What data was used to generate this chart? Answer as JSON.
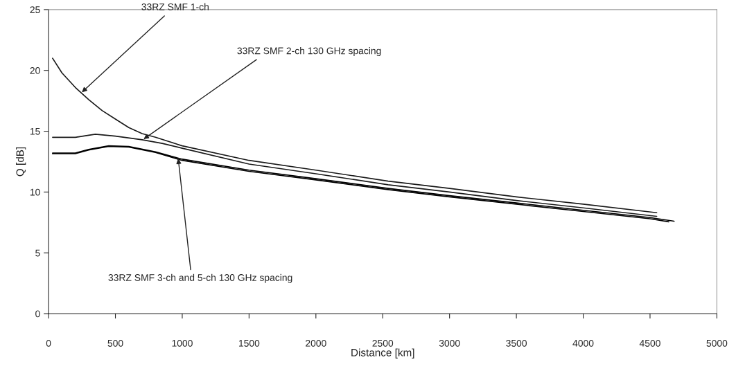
{
  "chart_data": {
    "type": "line",
    "xlabel": "Distance [km]",
    "ylabel": "Q [dB]",
    "xlim": [
      0,
      5000
    ],
    "xticks": [
      0,
      500,
      1000,
      1500,
      2000,
      2500,
      3000,
      3500,
      4000,
      4500,
      5000
    ],
    "ylim": [
      0,
      25
    ],
    "yticks": [
      0,
      5,
      10,
      15,
      20,
      25
    ],
    "grid": false,
    "legend": false,
    "series": [
      {
        "color": "#1a1a1a",
        "x": [
          30,
          100,
          200,
          300,
          400,
          500,
          600,
          700,
          800,
          1000,
          1500,
          2000,
          2540,
          3000,
          3500,
          4000,
          4550
        ],
        "values": [
          21.0,
          19.8,
          18.6,
          17.6,
          16.7,
          16.0,
          15.3,
          14.8,
          14.5,
          13.8,
          12.6,
          11.8,
          10.9,
          10.3,
          9.6,
          9.0,
          8.3
        ]
      },
      {
        "color": "#1a1a1a",
        "x": [
          30,
          200,
          350,
          500,
          700,
          850,
          1000,
          1500,
          2000,
          2540,
          3000,
          3500,
          4000,
          4550
        ],
        "values": [
          14.5,
          14.5,
          14.75,
          14.6,
          14.3,
          14.0,
          13.6,
          12.3,
          11.5,
          10.6,
          10.0,
          9.3,
          8.7,
          8.0
        ]
      },
      {
        "color": "#000000",
        "x": [
          30,
          200,
          300,
          450,
          600,
          800,
          1000,
          1500,
          2000,
          2540,
          3000,
          3500,
          4000,
          4500,
          4680
        ],
        "values": [
          13.2,
          13.2,
          13.5,
          13.8,
          13.75,
          13.3,
          12.7,
          11.8,
          11.1,
          10.3,
          9.7,
          9.1,
          8.5,
          7.9,
          7.6
        ]
      },
      {
        "color": "#000000",
        "x": [
          30,
          200,
          300,
          450,
          600,
          800,
          1000,
          1500,
          2000,
          2540,
          3000,
          3500,
          4000,
          4500,
          4640
        ],
        "values": [
          13.15,
          13.15,
          13.45,
          13.75,
          13.7,
          13.25,
          12.6,
          11.7,
          11.0,
          10.2,
          9.6,
          9.0,
          8.4,
          7.8,
          7.55
        ]
      }
    ],
    "annotations": [
      {
        "text": "33RZ SMF 1-ch",
        "x": 249,
        "y": 18.2
      },
      {
        "text": "33RZ SMF 2-ch 130 GHz spacing",
        "x": 711,
        "y": 14.35
      },
      {
        "text": "33RZ SMF 3-ch and 5-ch 130 GHz spacing",
        "x": 970,
        "y": 12.75
      }
    ]
  }
}
